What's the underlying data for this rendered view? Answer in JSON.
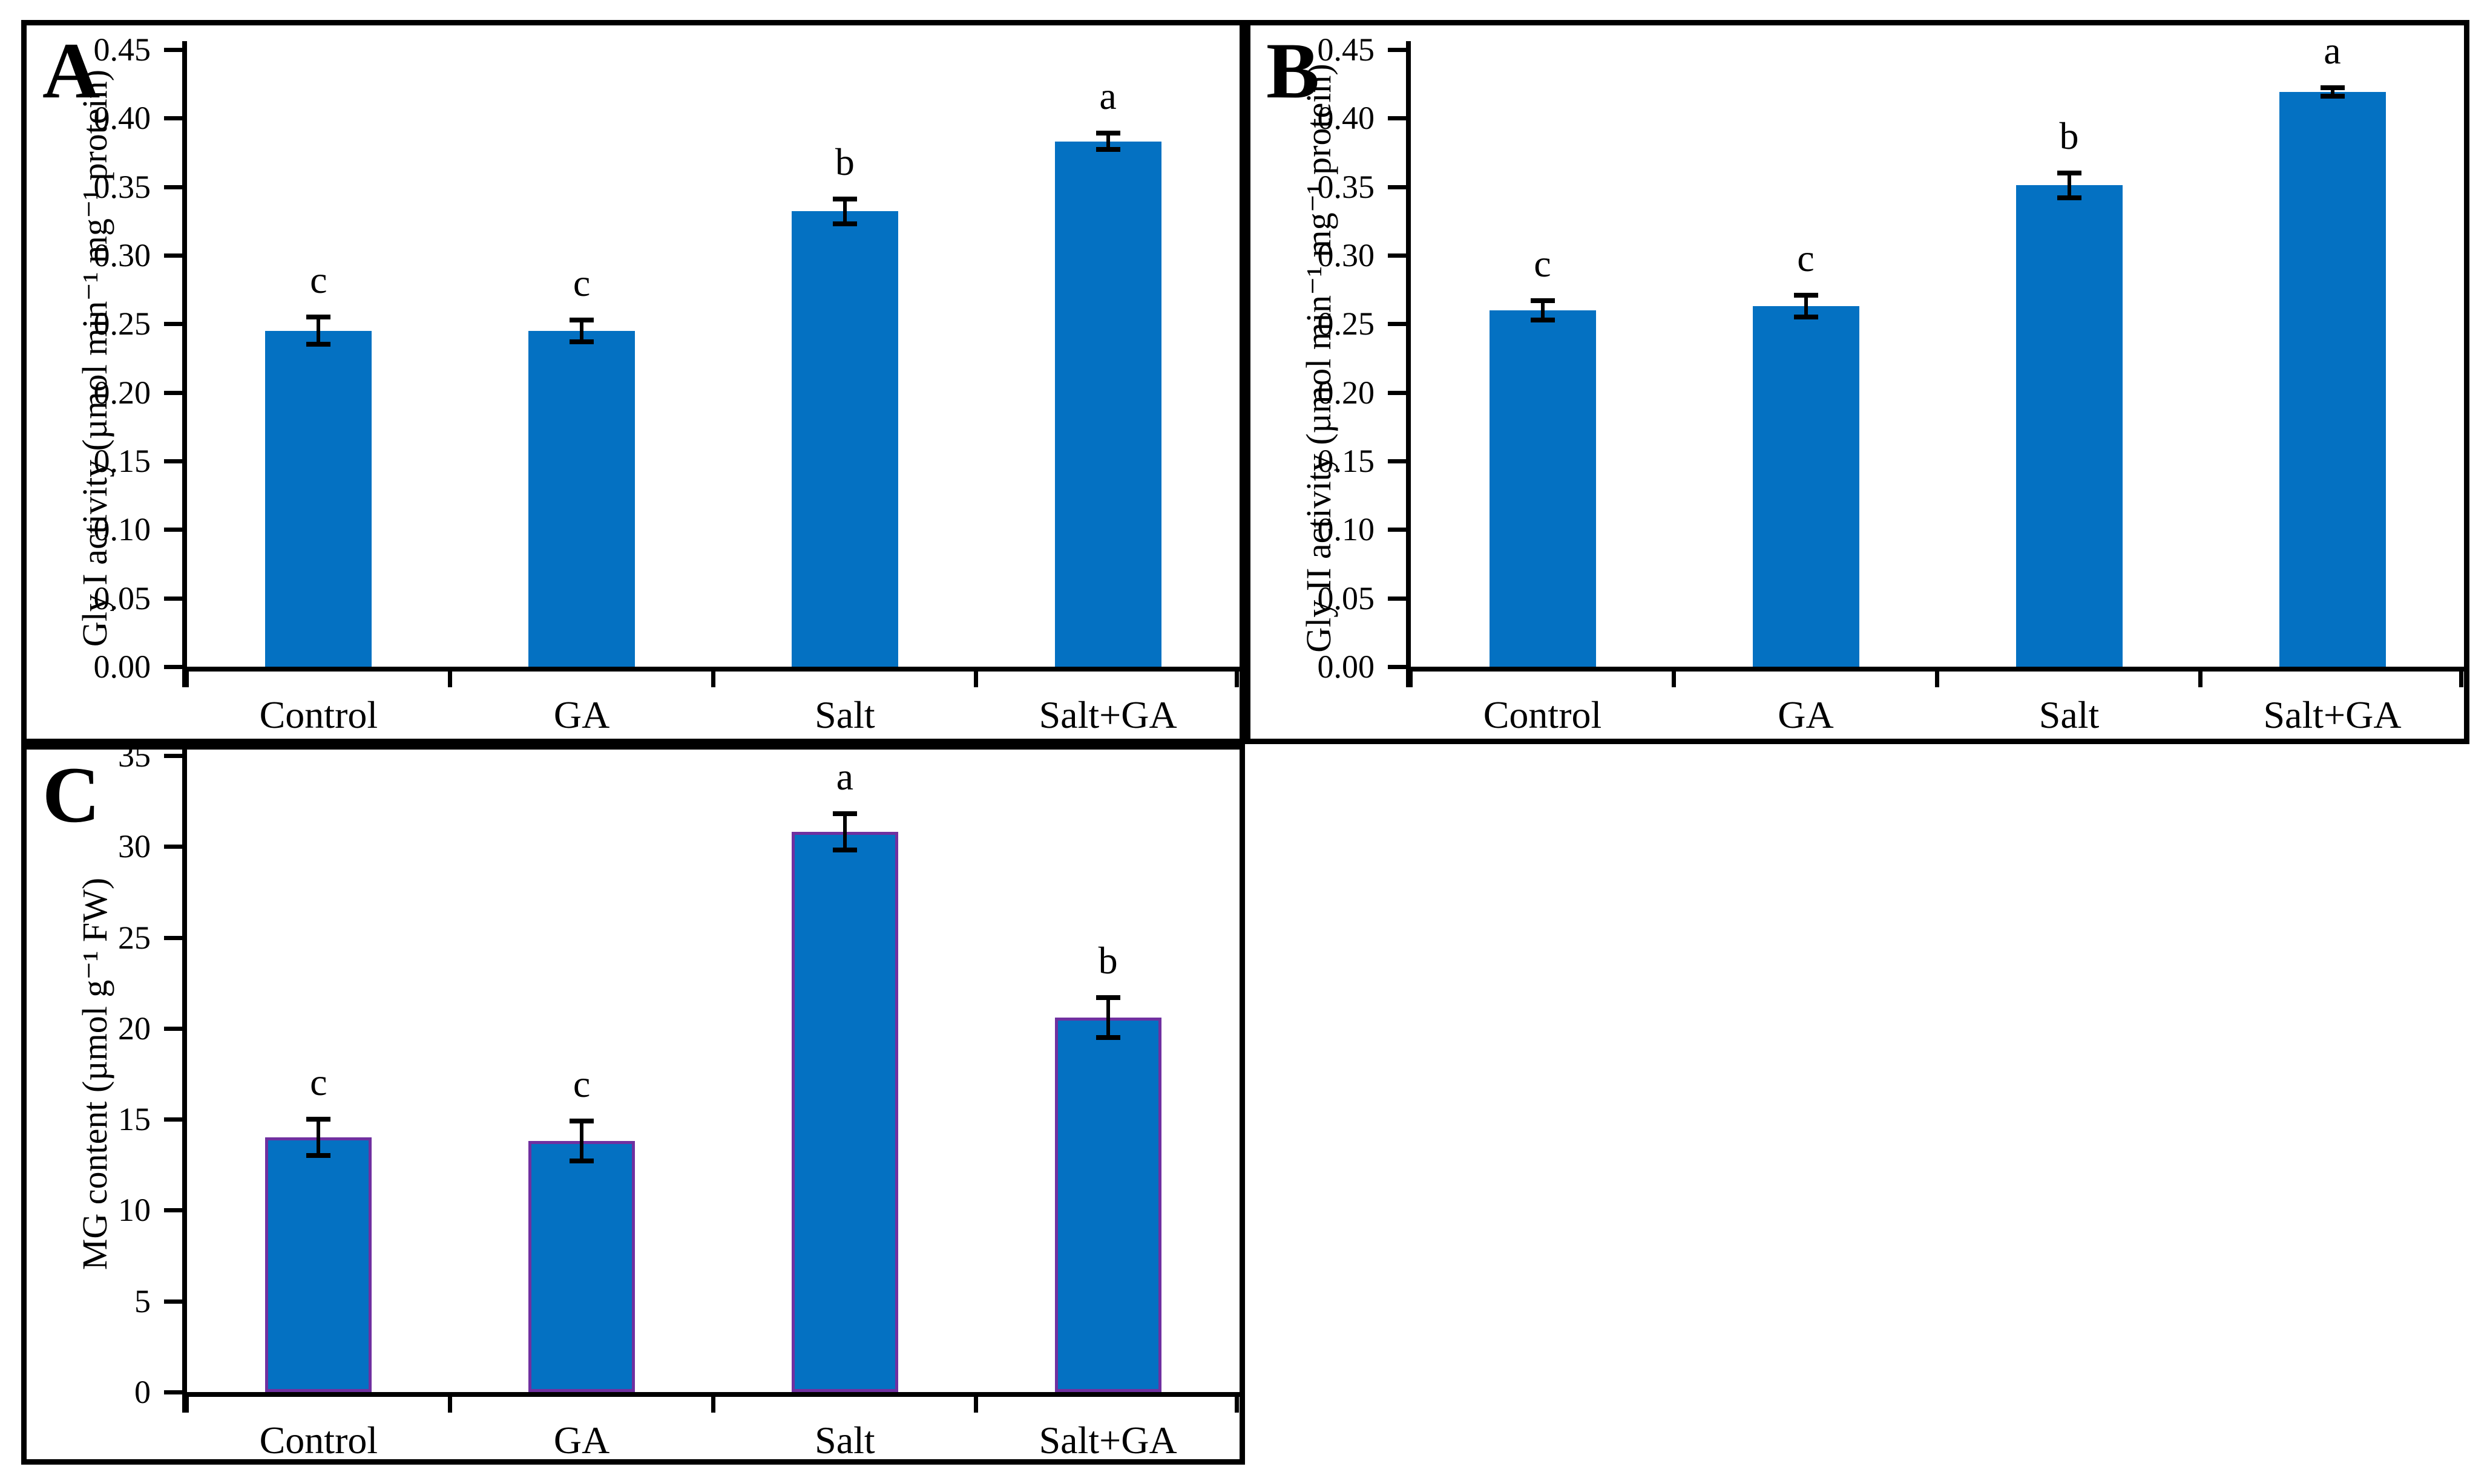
{
  "figure": {
    "background": "#ffffff",
    "panel_border_color": "#000000",
    "bar_fill": "#0471c2",
    "error_bar_color": "#000000"
  },
  "chart_data": [
    {
      "type": "bar",
      "panel_label": "A",
      "ylabel": "Gly I activity (µmol min⁻¹ mg⁻¹ protein)",
      "xlabel": "",
      "categories": [
        "Control",
        "GA",
        "Salt",
        "Salt+GA"
      ],
      "values": [
        0.245,
        0.245,
        0.332,
        0.383
      ],
      "errors": [
        0.01,
        0.008,
        0.009,
        0.006
      ],
      "sig_letters": [
        "c",
        "c",
        "b",
        "a"
      ],
      "ylim": [
        0,
        0.45
      ],
      "ytick_step": 0.05,
      "ytick_decimals": 2,
      "bar_color": "#0471c2",
      "bar_border": "none",
      "grid": false,
      "legend": "none"
    },
    {
      "type": "bar",
      "panel_label": "B",
      "ylabel": "Gly II activity (µmol min⁻¹ mg⁻¹ protein)",
      "xlabel": "",
      "categories": [
        "Control",
        "GA",
        "Salt",
        "Salt+GA"
      ],
      "values": [
        0.26,
        0.263,
        0.351,
        0.419
      ],
      "errors": [
        0.007,
        0.008,
        0.009,
        0.003
      ],
      "sig_letters": [
        "c",
        "c",
        "b",
        "a"
      ],
      "ylim": [
        0,
        0.45
      ],
      "ytick_step": 0.05,
      "ytick_decimals": 2,
      "bar_color": "#0471c2",
      "bar_border": "none",
      "grid": false,
      "legend": "none"
    },
    {
      "type": "bar",
      "panel_label": "C",
      "ylabel": "MG content (µmol g⁻¹ FW)",
      "xlabel": "",
      "categories": [
        "Control",
        "GA",
        "Salt",
        "Salt+GA"
      ],
      "values": [
        14.0,
        13.8,
        30.8,
        20.6
      ],
      "errors": [
        1.0,
        1.1,
        1.0,
        1.1
      ],
      "sig_letters": [
        "c",
        "c",
        "a",
        "b"
      ],
      "ylim": [
        0,
        35
      ],
      "ytick_step": 5,
      "ytick_decimals": 0,
      "bar_color": "#0471c2",
      "bar_border": "#7030a0",
      "grid": false,
      "legend": "none"
    }
  ]
}
